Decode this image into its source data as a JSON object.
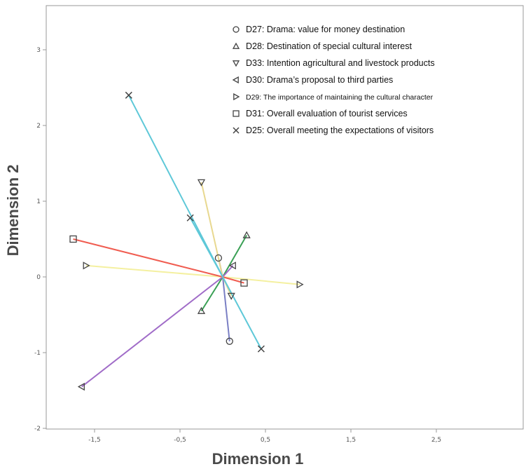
{
  "chart_data": {
    "type": "scatter",
    "title": "",
    "xlabel": "Dimension 1",
    "ylabel": "Dimension 2",
    "xlim": [
      -2.0,
      3.5
    ],
    "ylim": [
      -2.0,
      3.5
    ],
    "x_ticks": [
      -1.5,
      -0.5,
      0.5,
      1.5,
      2.5
    ],
    "x_tick_labels": [
      "-1,5",
      "-0,5",
      "0,5",
      "1,5",
      "2,5"
    ],
    "y_ticks": [
      -2,
      -1,
      0,
      1,
      2,
      3
    ],
    "y_tick_labels": [
      "-2",
      "-1",
      "0",
      "1",
      "2",
      "3"
    ],
    "grid": false,
    "legend_position": "top-right",
    "series": [
      {
        "name": "D27: Drama: value for money destination",
        "marker": "circle",
        "color": "#7a7fc4",
        "points": [
          {
            "x": -0.05,
            "y": 0.25
          },
          {
            "x": 0.08,
            "y": -0.85
          }
        ]
      },
      {
        "name": "D28: Destination of special cultural interest",
        "marker": "triangle-up",
        "color": "#3aa055",
        "points": [
          {
            "x": 0.28,
            "y": 0.55
          },
          {
            "x": -0.25,
            "y": -0.45
          }
        ]
      },
      {
        "name": "D33: Intention agricultural and livestock products",
        "marker": "triangle-down",
        "color": "#e8d890",
        "points": [
          {
            "x": -0.25,
            "y": 1.25
          },
          {
            "x": 0.1,
            "y": -0.25
          }
        ]
      },
      {
        "name": "D30: Drama’s proposal to third parties",
        "marker": "triangle-left",
        "color": "#a06cc8",
        "points": [
          {
            "x": -1.65,
            "y": -1.45
          },
          {
            "x": 0.12,
            "y": 0.15
          }
        ]
      },
      {
        "name": "D29: The importance of maintaining the cultural character",
        "marker": "triangle-right",
        "color": "#f4f0a0",
        "points": [
          {
            "x": -1.6,
            "y": 0.15
          },
          {
            "x": 0.9,
            "y": -0.1
          }
        ]
      },
      {
        "name": "D31: Overall evaluation of tourist services",
        "marker": "square",
        "color": "#f05c50",
        "points": [
          {
            "x": -1.75,
            "y": 0.5
          },
          {
            "x": 0.25,
            "y": -0.08
          }
        ]
      },
      {
        "name": "D25: Overall meeting the expectations of visitors",
        "marker": "x",
        "color": "#5ec8d8",
        "points": [
          {
            "x": -1.1,
            "y": 2.4
          },
          {
            "x": 0.45,
            "y": -0.95
          },
          {
            "x": -0.38,
            "y": 0.78
          }
        ]
      }
    ]
  }
}
